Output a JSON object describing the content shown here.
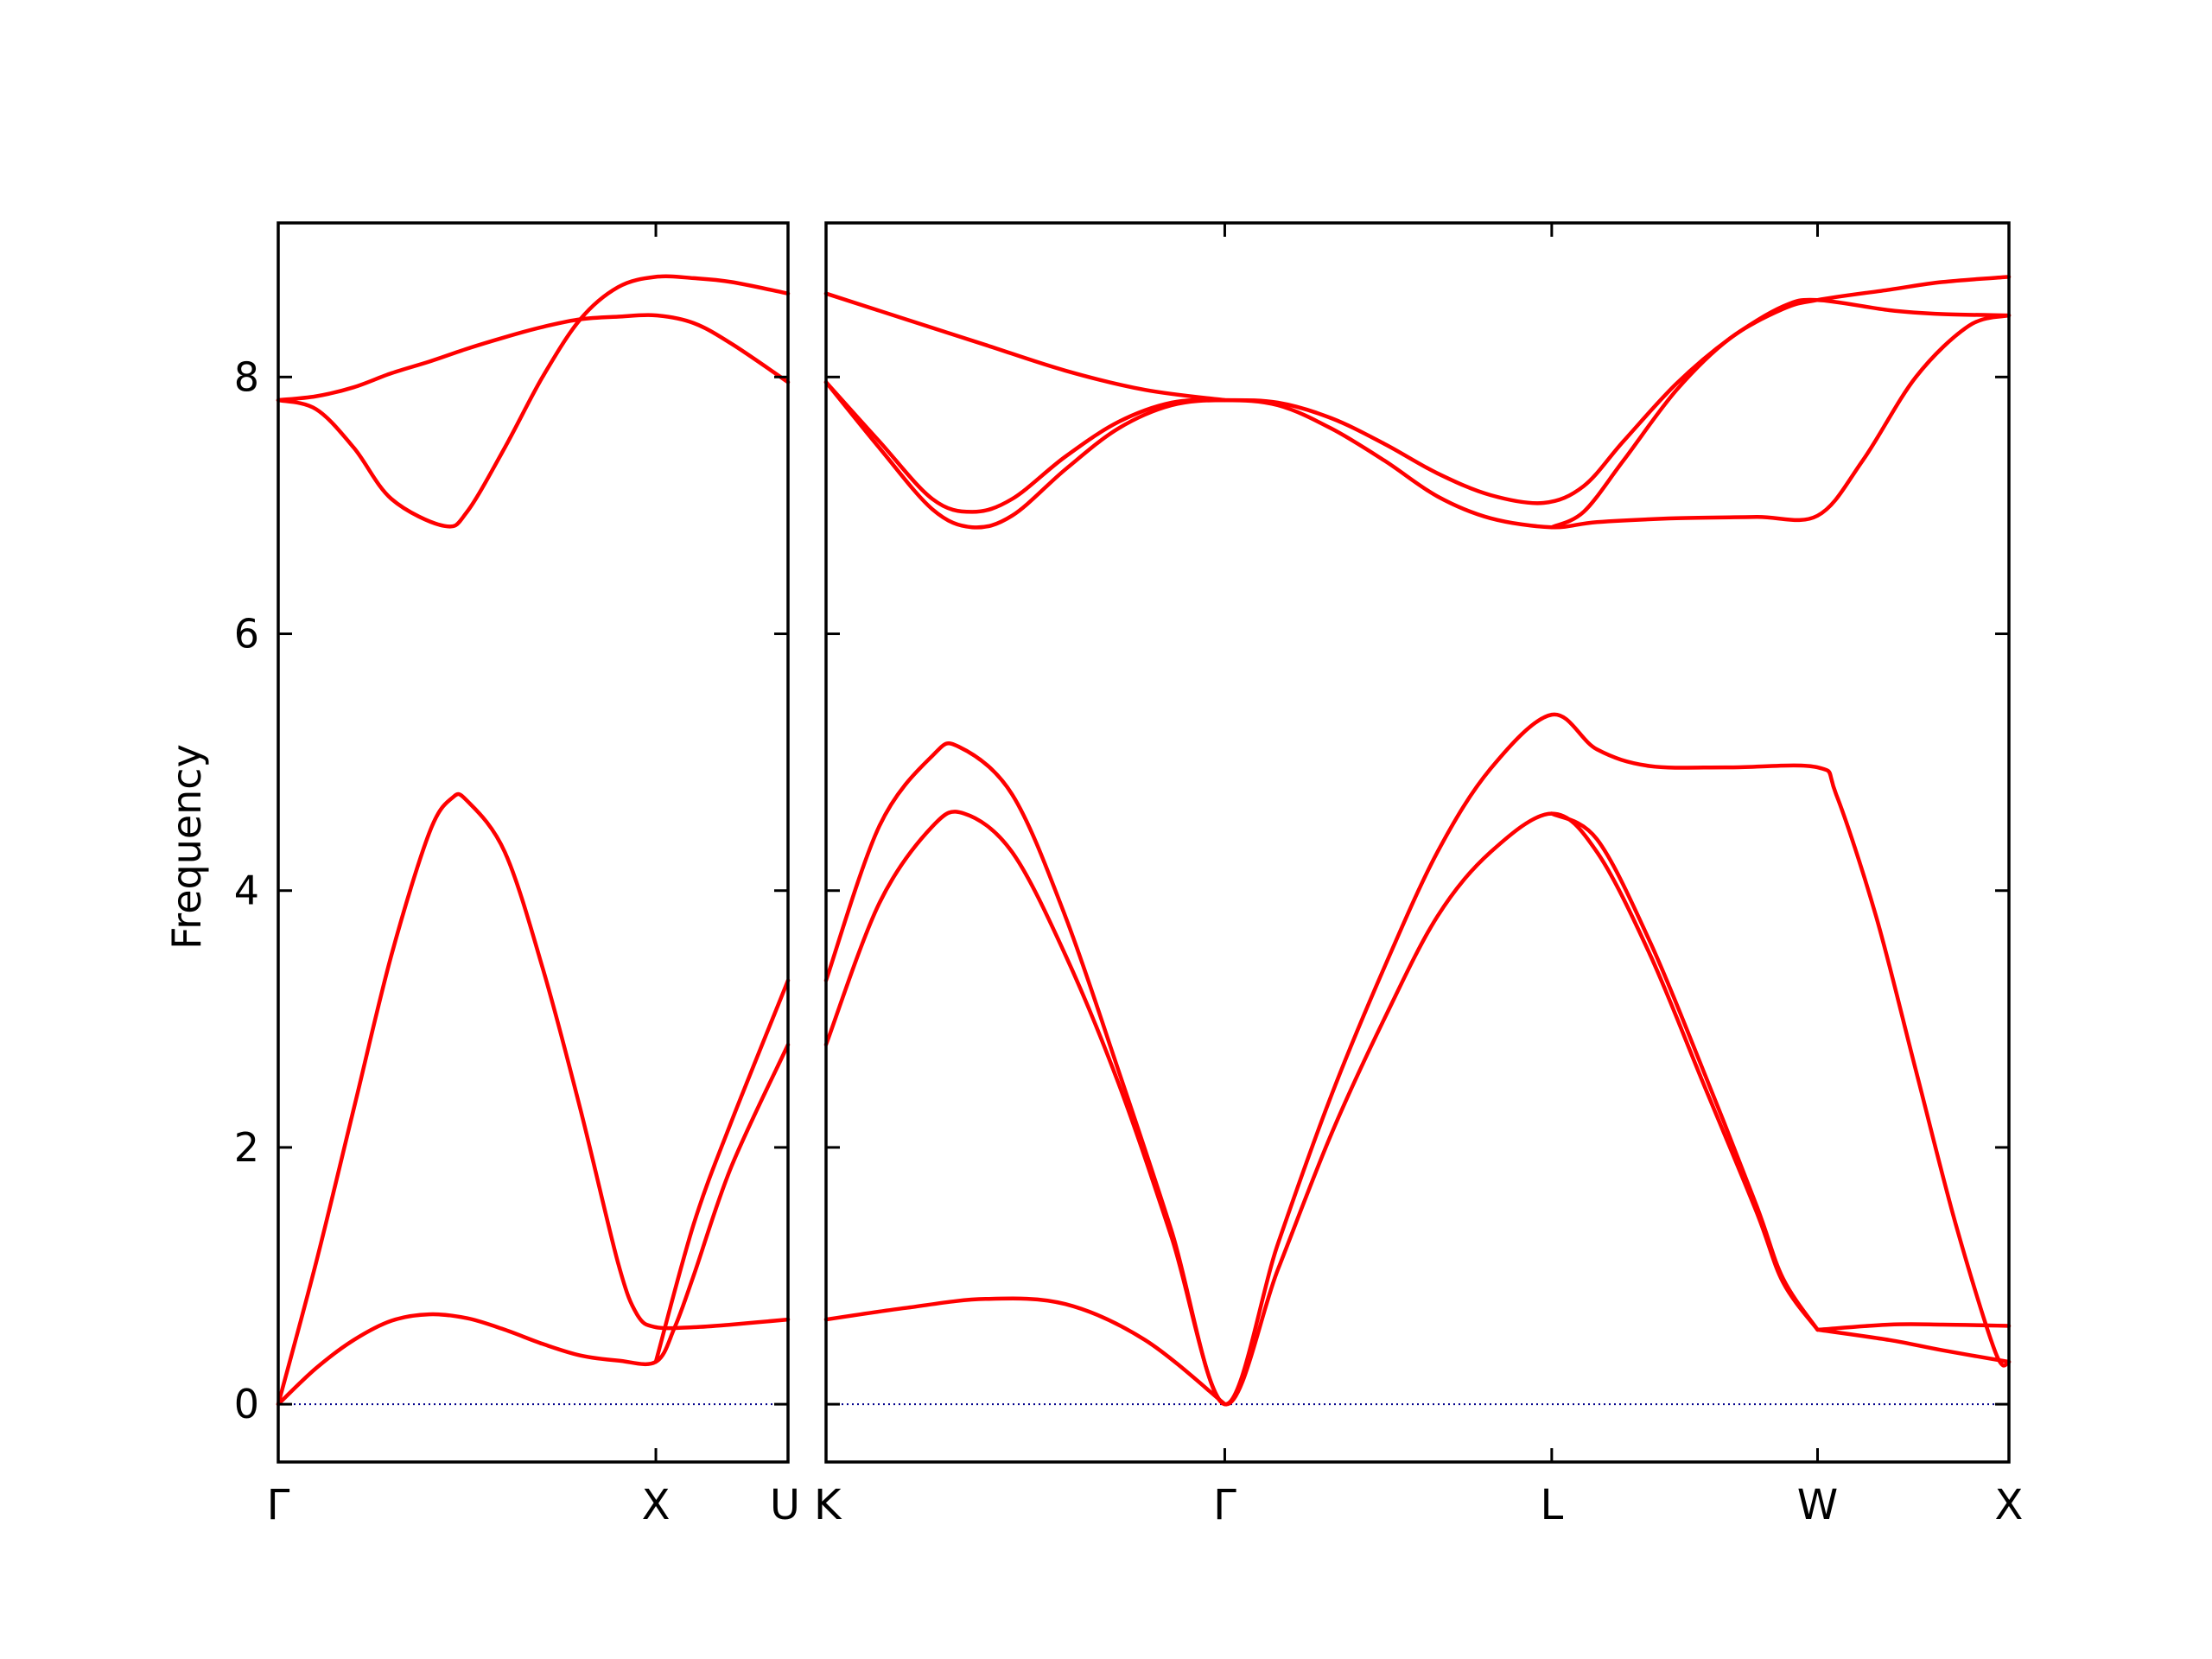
{
  "chart_data": {
    "type": "line",
    "ylabel": "Frequency",
    "ylim": [
      -0.45,
      9.2
    ],
    "yticks": [
      0,
      2,
      4,
      6,
      8
    ],
    "line_color": "#ff0000",
    "zero_line_color": "#00008b",
    "panels": [
      {
        "name": "left",
        "xlim": [
          0,
          1.35
        ],
        "xticks": [
          {
            "pos": 0,
            "label": "Γ"
          },
          {
            "pos": 1.0,
            "label": "X"
          },
          {
            "pos": 1.35,
            "label": "U"
          }
        ],
        "series": [
          {
            "values": [
              [
                0,
                0
              ],
              [
                0.1,
                1.1
              ],
              [
                0.2,
                2.3
              ],
              [
                0.3,
                3.5
              ],
              [
                0.4,
                4.45
              ],
              [
                0.46,
                4.72
              ],
              [
                0.5,
                4.7
              ],
              [
                0.6,
                4.3
              ],
              [
                0.7,
                3.4
              ],
              [
                0.8,
                2.3
              ],
              [
                0.9,
                1.1
              ],
              [
                0.95,
                0.7
              ],
              [
                1.0,
                0.6
              ],
              [
                1.1,
                0.6
              ],
              [
                1.2,
                0.62
              ],
              [
                1.35,
                0.66
              ]
            ]
          },
          {
            "values": [
              [
                0,
                0
              ],
              [
                0.1,
                0.28
              ],
              [
                0.2,
                0.5
              ],
              [
                0.3,
                0.65
              ],
              [
                0.4,
                0.7
              ],
              [
                0.5,
                0.67
              ],
              [
                0.6,
                0.58
              ],
              [
                0.7,
                0.47
              ],
              [
                0.8,
                0.38
              ],
              [
                0.9,
                0.34
              ],
              [
                1.0,
                0.33
              ],
              [
                1.05,
                0.6
              ],
              [
                1.1,
                1.0
              ],
              [
                1.2,
                1.85
              ],
              [
                1.35,
                2.8
              ]
            ]
          },
          {
            "values": [
              [
                1.0,
                0.33
              ],
              [
                1.1,
                1.4
              ],
              [
                1.2,
                2.2
              ],
              [
                1.35,
                3.3
              ]
            ]
          },
          {
            "values": [
              [
                0,
                7.82
              ],
              [
                0.1,
                7.75
              ],
              [
                0.2,
                7.45
              ],
              [
                0.3,
                7.05
              ],
              [
                0.44,
                6.84
              ],
              [
                0.5,
                6.95
              ],
              [
                0.6,
                7.45
              ],
              [
                0.7,
                8.0
              ],
              [
                0.8,
                8.45
              ],
              [
                0.9,
                8.7
              ],
              [
                1.0,
                8.78
              ],
              [
                1.1,
                8.77
              ],
              [
                1.2,
                8.74
              ],
              [
                1.35,
                8.65
              ]
            ]
          },
          {
            "values": [
              [
                0,
                7.82
              ],
              [
                0.1,
                7.85
              ],
              [
                0.2,
                7.92
              ],
              [
                0.3,
                8.03
              ],
              [
                0.4,
                8.12
              ],
              [
                0.5,
                8.22
              ],
              [
                0.6,
                8.31
              ],
              [
                0.7,
                8.39
              ],
              [
                0.8,
                8.45
              ],
              [
                0.9,
                8.47
              ],
              [
                1.0,
                8.48
              ],
              [
                1.1,
                8.42
              ],
              [
                1.2,
                8.26
              ],
              [
                1.35,
                7.96
              ]
            ]
          }
        ]
      },
      {
        "name": "right",
        "xlim": [
          0,
          4.45
        ],
        "xticks": [
          {
            "pos": 0,
            "label": "K"
          },
          {
            "pos": 1.5,
            "label": "Γ"
          },
          {
            "pos": 2.73,
            "label": "L"
          },
          {
            "pos": 3.73,
            "label": "W"
          },
          {
            "pos": 4.45,
            "label": "X"
          }
        ],
        "series": [
          {
            "values": [
              [
                0,
                0.66
              ],
              [
                0.3,
                0.75
              ],
              [
                0.6,
                0.82
              ],
              [
                0.9,
                0.78
              ],
              [
                1.2,
                0.5
              ],
              [
                1.5,
                0
              ]
            ]
          },
          {
            "values": [
              [
                0,
                2.8
              ],
              [
                0.2,
                3.9
              ],
              [
                0.4,
                4.5
              ],
              [
                0.52,
                4.6
              ],
              [
                0.7,
                4.3
              ],
              [
                0.9,
                3.5
              ],
              [
                1.1,
                2.5
              ],
              [
                1.3,
                1.3
              ],
              [
                1.5,
                0
              ],
              [
                1.7,
                1.05
              ],
              [
                1.9,
                2.1
              ],
              [
                2.1,
                3.0
              ],
              [
                2.3,
                3.8
              ],
              [
                2.5,
                4.3
              ],
              [
                2.73,
                4.6
              ],
              [
                2.9,
                4.3
              ],
              [
                3.1,
                3.5
              ],
              [
                3.3,
                2.5
              ],
              [
                3.5,
                1.5
              ],
              [
                3.6,
                0.95
              ],
              [
                3.73,
                0.58
              ]
            ]
          },
          {
            "values": [
              [
                0,
                3.3
              ],
              [
                0.2,
                4.5
              ],
              [
                0.4,
                5.05
              ],
              [
                0.5,
                5.12
              ],
              [
                0.7,
                4.75
              ],
              [
                0.9,
                3.8
              ],
              [
                1.1,
                2.6
              ],
              [
                1.3,
                1.35
              ],
              [
                1.5,
                0
              ],
              [
                1.7,
                1.25
              ],
              [
                1.9,
                2.4
              ],
              [
                2.1,
                3.4
              ],
              [
                2.3,
                4.3
              ],
              [
                2.5,
                4.95
              ],
              [
                2.73,
                5.37
              ],
              [
                2.9,
                5.1
              ],
              [
                3.1,
                4.97
              ],
              [
                3.4,
                4.96
              ],
              [
                3.73,
                4.96
              ],
              [
                3.8,
                4.75
              ],
              [
                3.95,
                3.8
              ],
              [
                4.1,
                2.6
              ],
              [
                4.25,
                1.4
              ],
              [
                4.4,
                0.4
              ],
              [
                4.45,
                0.33
              ]
            ]
          },
          {
            "values": [
              [
                2.73,
                4.6
              ],
              [
                2.9,
                4.4
              ],
              [
                3.1,
                3.6
              ],
              [
                3.3,
                2.6
              ],
              [
                3.5,
                1.55
              ],
              [
                3.6,
                0.98
              ],
              [
                3.73,
                0.58
              ]
            ]
          },
          {
            "values": [
              [
                3.73,
                0.58
              ],
              [
                4.0,
                0.62
              ],
              [
                4.2,
                0.62
              ],
              [
                4.45,
                0.61
              ]
            ]
          },
          {
            "values": [
              [
                3.73,
                0.58
              ],
              [
                4.0,
                0.5
              ],
              [
                4.2,
                0.42
              ],
              [
                4.45,
                0.33
              ]
            ]
          },
          {
            "values": [
              [
                0,
                7.96
              ],
              [
                0.2,
                7.45
              ],
              [
                0.4,
                6.97
              ],
              [
                0.55,
                6.83
              ],
              [
                0.7,
                6.92
              ],
              [
                0.9,
                7.28
              ],
              [
                1.1,
                7.6
              ],
              [
                1.3,
                7.78
              ],
              [
                1.5,
                7.82
              ],
              [
                1.7,
                7.78
              ],
              [
                1.9,
                7.6
              ],
              [
                2.1,
                7.35
              ],
              [
                2.3,
                7.07
              ],
              [
                2.5,
                6.9
              ],
              [
                2.73,
                6.83
              ],
              [
                2.9,
                6.87
              ],
              [
                3.2,
                6.9
              ],
              [
                3.5,
                6.91
              ],
              [
                3.73,
                6.92
              ],
              [
                3.9,
                7.35
              ],
              [
                4.1,
                8.0
              ],
              [
                4.3,
                8.4
              ],
              [
                4.45,
                8.48
              ]
            ]
          },
          {
            "values": [
              [
                0,
                7.96
              ],
              [
                0.2,
                7.5
              ],
              [
                0.4,
                7.05
              ],
              [
                0.55,
                6.95
              ],
              [
                0.7,
                7.05
              ],
              [
                0.9,
                7.38
              ],
              [
                1.1,
                7.65
              ],
              [
                1.3,
                7.8
              ],
              [
                1.5,
                7.82
              ],
              [
                1.7,
                7.8
              ],
              [
                1.9,
                7.68
              ],
              [
                2.1,
                7.48
              ],
              [
                2.3,
                7.25
              ],
              [
                2.5,
                7.08
              ],
              [
                2.7,
                7.02
              ],
              [
                2.85,
                7.15
              ],
              [
                3.0,
                7.5
              ],
              [
                3.2,
                7.95
              ],
              [
                3.4,
                8.3
              ],
              [
                3.6,
                8.55
              ],
              [
                3.73,
                8.6
              ],
              [
                4.0,
                8.52
              ],
              [
                4.2,
                8.49
              ],
              [
                4.45,
                8.48
              ]
            ]
          },
          {
            "values": [
              [
                2.73,
                6.83
              ],
              [
                2.85,
                6.95
              ],
              [
                3.0,
                7.35
              ],
              [
                3.2,
                7.9
              ],
              [
                3.4,
                8.3
              ],
              [
                3.6,
                8.53
              ],
              [
                3.73,
                8.6
              ],
              [
                4.0,
                8.68
              ],
              [
                4.2,
                8.74
              ],
              [
                4.45,
                8.78
              ]
            ]
          },
          {
            "values": [
              [
                0,
                8.65
              ],
              [
                0.3,
                8.45
              ],
              [
                0.6,
                8.25
              ],
              [
                0.9,
                8.05
              ],
              [
                1.2,
                7.9
              ],
              [
                1.5,
                7.82
              ]
            ]
          }
        ]
      }
    ]
  }
}
